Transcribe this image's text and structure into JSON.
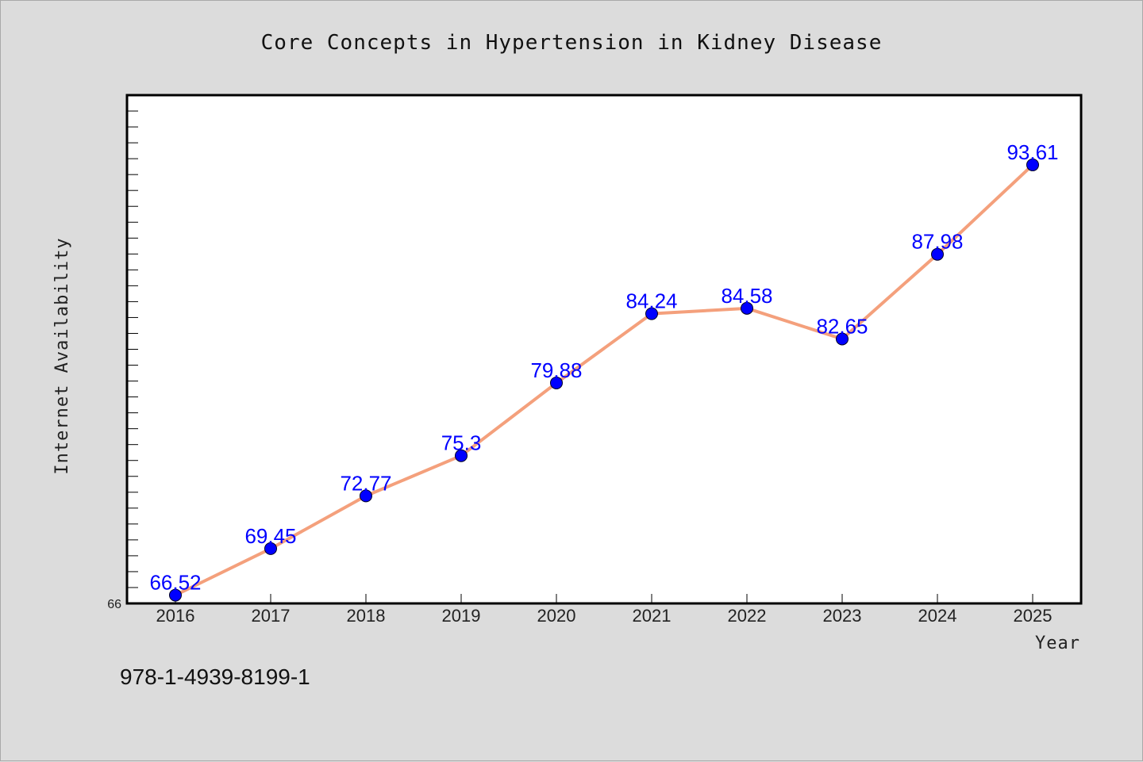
{
  "footer": {
    "isbn": "978-1-4939-8199-1"
  },
  "chart_data": {
    "type": "line",
    "title": "Core Concepts in Hypertension in Kidney Disease",
    "xlabel": "Year",
    "ylabel": "Internet Availability",
    "x": [
      "2016",
      "2017",
      "2018",
      "2019",
      "2020",
      "2021",
      "2022",
      "2023",
      "2024",
      "2025"
    ],
    "series": [
      {
        "values": [
          66.52,
          69.45,
          72.77,
          75.3,
          79.88,
          84.24,
          84.58,
          82.65,
          87.98,
          93.61
        ],
        "data_labels": [
          "66.52",
          "69.45",
          "72.77",
          "75.3",
          "79.88",
          "84.24",
          "84.58",
          "82.65",
          "87.98",
          "93.61"
        ],
        "line_color": "#f4a07c",
        "marker_color": "#0000ff"
      }
    ],
    "ylim": [
      66,
      98
    ],
    "y_tick_labels": [
      "66"
    ],
    "grid": false,
    "legend": "none",
    "background": "#dcdcdc",
    "plot_background": "#ffffff"
  }
}
